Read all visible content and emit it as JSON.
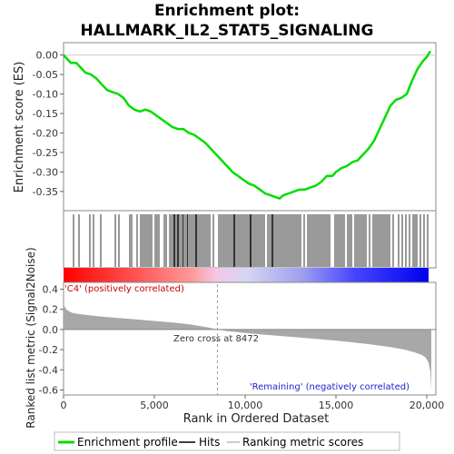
{
  "title_line1": "Enrichment plot:",
  "title_line2": "HALLMARK_IL2_STAT5_SIGNALING",
  "colors": {
    "enrichment_line": "#00dd00",
    "hits": "#000000",
    "metric_fill": "#a8a8a8",
    "zero_line": "#888888",
    "zero_cross_line": "#999999",
    "positive_label": "#cc0000",
    "negative_label": "#2222cc",
    "bar_red": "#ff0000",
    "bar_blue": "#0000ff"
  },
  "chart_data": [
    {
      "type": "line",
      "name": "enrichment-profile",
      "ylabel": "Enrichment score (ES)",
      "xlim": [
        0,
        20500
      ],
      "ylim": [
        -0.39,
        0.02
      ],
      "yticks": [
        "0.00",
        "-0.05",
        "-0.10",
        "-0.15",
        "-0.20",
        "-0.25",
        "-0.30",
        "-0.35"
      ],
      "ytick_values": [
        0.0,
        -0.05,
        -0.1,
        -0.15,
        -0.2,
        -0.25,
        -0.3,
        -0.35
      ],
      "grid": false,
      "series": [
        {
          "name": "Enrichment profile",
          "x": [
            0,
            200,
            400,
            700,
            900,
            1200,
            1500,
            1800,
            2100,
            2400,
            2700,
            3000,
            3300,
            3600,
            3900,
            4200,
            4500,
            4800,
            5100,
            5400,
            5700,
            6000,
            6300,
            6600,
            6900,
            7200,
            7500,
            7800,
            8100,
            8400,
            8700,
            9000,
            9300,
            9600,
            9900,
            10200,
            10500,
            10800,
            11100,
            11400,
            11700,
            11900,
            12100,
            12400,
            12700,
            13000,
            13300,
            13600,
            13900,
            14200,
            14500,
            14800,
            15000,
            15300,
            15600,
            15900,
            16200,
            16500,
            16800,
            17100,
            17400,
            17700,
            18000,
            18300,
            18600,
            18900,
            19200,
            19500,
            19800,
            20000,
            20200
          ],
          "y": [
            0.0,
            -0.01,
            -0.02,
            -0.02,
            -0.03,
            -0.045,
            -0.05,
            -0.06,
            -0.075,
            -0.09,
            -0.095,
            -0.1,
            -0.11,
            -0.13,
            -0.14,
            -0.145,
            -0.14,
            -0.145,
            -0.155,
            -0.165,
            -0.175,
            -0.185,
            -0.19,
            -0.19,
            -0.2,
            -0.205,
            -0.215,
            -0.225,
            -0.24,
            -0.255,
            -0.27,
            -0.285,
            -0.3,
            -0.31,
            -0.32,
            -0.33,
            -0.335,
            -0.345,
            -0.355,
            -0.36,
            -0.365,
            -0.368,
            -0.36,
            -0.355,
            -0.35,
            -0.345,
            -0.345,
            -0.34,
            -0.335,
            -0.325,
            -0.31,
            -0.31,
            -0.3,
            -0.29,
            -0.285,
            -0.275,
            -0.27,
            -0.255,
            -0.24,
            -0.22,
            -0.19,
            -0.16,
            -0.13,
            -0.115,
            -0.11,
            -0.1,
            -0.065,
            -0.035,
            -0.015,
            -0.005,
            0.01
          ]
        }
      ]
    },
    {
      "type": "area",
      "name": "ranked-list-metric",
      "xlabel": "Rank in Ordered Dataset",
      "ylabel": "Ranked list metric (Signal2Noise)",
      "xlim": [
        0,
        20500
      ],
      "ylim": [
        -0.65,
        0.45
      ],
      "xticks": [
        "0",
        "5,000",
        "10,000",
        "15,000",
        "20,000"
      ],
      "xtick_values": [
        0,
        5000,
        10000,
        15000,
        20000
      ],
      "yticks": [
        "0.4",
        "0.2",
        "0.0",
        "-0.2",
        "-0.4",
        "-0.6"
      ],
      "ytick_values": [
        0.4,
        0.2,
        0.0,
        -0.2,
        -0.4,
        -0.6
      ],
      "series": [
        {
          "name": "Ranking metric scores",
          "x": [
            0,
            50,
            150,
            300,
            500,
            800,
            1200,
            2000,
            3000,
            4000,
            5000,
            6000,
            7000,
            8000,
            8472,
            9000,
            10000,
            11000,
            12000,
            13000,
            14000,
            15000,
            16000,
            17000,
            18000,
            18800,
            19300,
            19700,
            19950,
            20100,
            20200,
            20250
          ],
          "y": [
            0.26,
            0.23,
            0.2,
            0.18,
            0.165,
            0.155,
            0.145,
            0.13,
            0.115,
            0.1,
            0.085,
            0.07,
            0.05,
            0.02,
            0.0,
            -0.015,
            -0.035,
            -0.05,
            -0.065,
            -0.08,
            -0.095,
            -0.11,
            -0.13,
            -0.15,
            -0.175,
            -0.2,
            -0.225,
            -0.25,
            -0.28,
            -0.33,
            -0.42,
            -0.61
          ]
        }
      ],
      "zero_cross_label": "Zero cross at 8472",
      "zero_cross_x": 8472,
      "positive_label": "'C4' (positively correlated)",
      "negative_label": "'Remaining' (negatively correlated)"
    }
  ],
  "hits": [
    550,
    850,
    1450,
    1650,
    2050,
    2850,
    3050,
    3650,
    3750,
    4050,
    4250,
    4350,
    4450,
    4550,
    4650,
    4750,
    4850,
    5050,
    5150,
    5250,
    5550,
    5650,
    5850,
    5950,
    6050,
    6100,
    6150,
    6250,
    6300,
    6350,
    6450,
    6550,
    6600,
    6700,
    6800,
    6850,
    6950,
    7050,
    7150,
    7250,
    7300,
    7350,
    7450,
    7550,
    7650,
    7750,
    7850,
    7950,
    8050,
    8250,
    8550,
    8650,
    8750,
    8850,
    8950,
    9050,
    9150,
    9250,
    9350,
    9400,
    9450,
    9550,
    9650,
    9750,
    9850,
    9950,
    10050,
    10150,
    10250,
    10300,
    10350,
    10450,
    10550,
    10650,
    10750,
    10850,
    10950,
    11050,
    11250,
    11350,
    11450,
    11500,
    11550,
    11650,
    11750,
    11850,
    11950,
    12050,
    12150,
    12250,
    12350,
    12450,
    12550,
    12650,
    12750,
    12850,
    12950,
    13050,
    13250,
    13450,
    13550,
    13650,
    13750,
    13850,
    13950,
    14050,
    14150,
    14250,
    14350,
    14450,
    14550,
    14650,
    14950,
    15050,
    15150,
    15250,
    15350,
    15450,
    15650,
    15750,
    15850,
    16050,
    16150,
    16250,
    16350,
    16450,
    16550,
    16650,
    16850,
    17050,
    17150,
    17250,
    17350,
    17450,
    17550,
    17650,
    17750,
    17850,
    17950,
    18150,
    18450,
    18650,
    18850,
    19050,
    19250,
    19350,
    19450,
    19650,
    19850,
    20050
  ],
  "legend": {
    "items": [
      {
        "label": "Enrichment profile",
        "style": "enrichment"
      },
      {
        "label": "Hits",
        "style": "hits"
      },
      {
        "label": "Ranking metric scores",
        "style": "metric"
      }
    ]
  }
}
